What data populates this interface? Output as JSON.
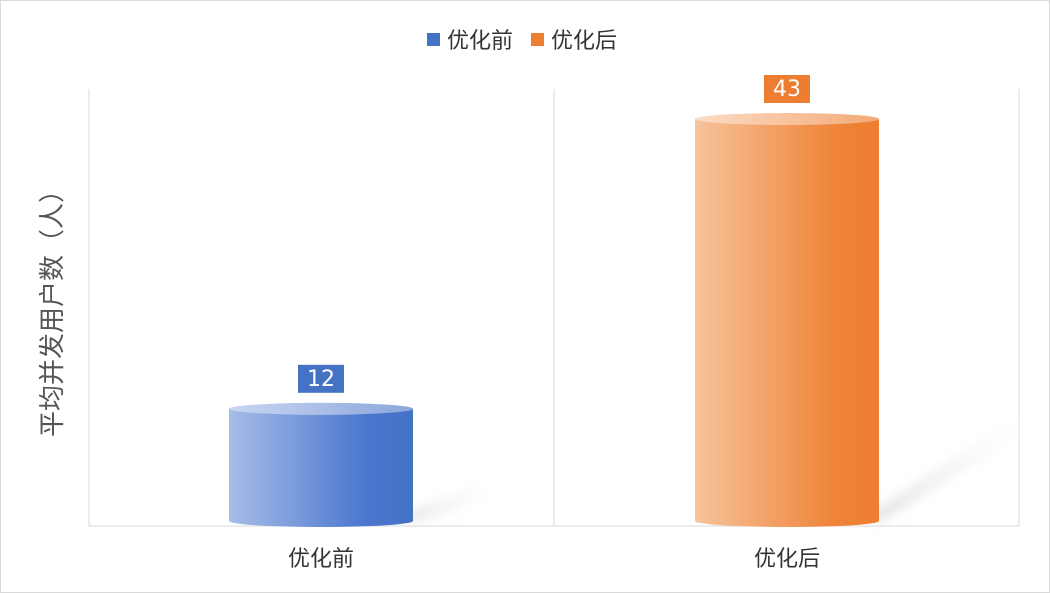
{
  "chart_data": {
    "type": "bar",
    "style": "3d-cylinder",
    "title": "",
    "xlabel": "",
    "ylabel": "平均并发用户数（人）",
    "categories": [
      "优化前",
      "优化后"
    ],
    "values": [
      12,
      43
    ],
    "data_labels": [
      "12",
      "43"
    ],
    "colors": [
      "#4472c4",
      "#ed7d31"
    ],
    "ylim": [
      0,
      46
    ],
    "grid": "vertical category separators",
    "legend": {
      "position": "top-center",
      "entries": [
        {
          "name": "优化前",
          "color": "#4472c4"
        },
        {
          "name": "优化后",
          "color": "#ed7d31"
        }
      ]
    }
  }
}
